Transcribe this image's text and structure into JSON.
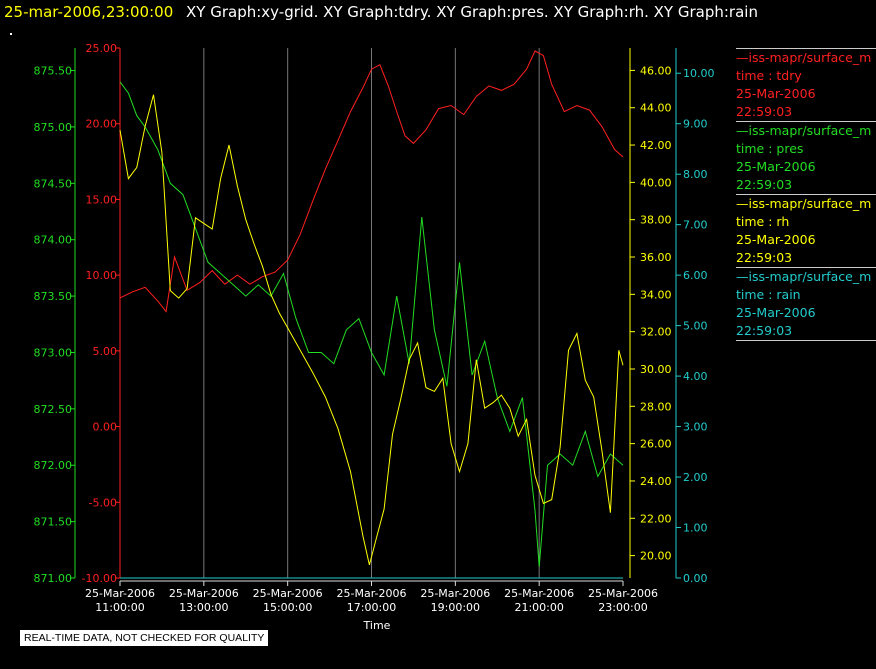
{
  "header": {
    "time": "25-mar-2006,23:00:00",
    "graphs": "XY Graph:xy-grid.  XY Graph:tdry.  XY Graph:pres.  XY Graph:rh.  XY Graph:rain"
  },
  "legend": [
    {
      "title": "—iss-mapr/surface_m",
      "var": "time : tdry",
      "date": "25-Mar-2006",
      "time": "22:59:03",
      "color": "#ff2020"
    },
    {
      "title": "—iss-mapr/surface_m",
      "var": "time : pres",
      "date": "25-Mar-2006",
      "time": "22:59:03",
      "color": "#22dd22"
    },
    {
      "title": "—iss-mapr/surface_m",
      "var": "time : rh",
      "date": "25-Mar-2006",
      "time": "22:59:03",
      "color": "#ffff00"
    },
    {
      "title": "—iss-mapr/surface_m",
      "var": "time : rain",
      "date": "25-Mar-2006",
      "time": "22:59:03",
      "color": "#22cccc"
    }
  ],
  "footer": "REAL-TIME DATA, NOT CHECKED FOR QUALITY",
  "chart_data": {
    "type": "line",
    "xlabel": "Time",
    "xlim": [
      "25-Mar-2006 11:00",
      "25-Mar-2006 23:00"
    ],
    "x_ticks": [
      [
        "25-Mar-2006",
        "11:00:00"
      ],
      [
        "25-Mar-2006",
        "13:00:00"
      ],
      [
        "25-Mar-2006",
        "15:00:00"
      ],
      [
        "25-Mar-2006",
        "17:00:00"
      ],
      [
        "25-Mar-2006",
        "19:00:00"
      ],
      [
        "25-Mar-2006",
        "21:00:00"
      ],
      [
        "25-Mar-2006",
        "23:00:00"
      ]
    ],
    "grid": "vertical",
    "axes": {
      "pres": {
        "color": "#22dd22",
        "ylim": [
          871.0,
          875.7
        ],
        "ticks": [
          "871.00",
          "871.50",
          "872.00",
          "872.50",
          "873.00",
          "873.50",
          "874.00",
          "874.50",
          "875.00",
          "875.50"
        ]
      },
      "tdry": {
        "color": "#ff2020",
        "ylim": [
          -10.0,
          25.0
        ],
        "ticks": [
          "-10.00",
          "-5.00",
          "0.00",
          "5.00",
          "10.00",
          "15.00",
          "20.00",
          "25.00"
        ]
      },
      "rh": {
        "color": "#ffff00",
        "ylim": [
          18.8,
          47.2
        ],
        "ticks": [
          "20.00",
          "22.00",
          "24.00",
          "26.00",
          "28.00",
          "30.00",
          "32.00",
          "34.00",
          "36.00",
          "38.00",
          "40.00",
          "42.00",
          "44.00",
          "46.00"
        ]
      },
      "rain": {
        "color": "#22cccc",
        "ylim": [
          0.0,
          10.5
        ],
        "ticks": [
          "0.00",
          "1.00",
          "2.00",
          "3.00",
          "4.00",
          "5.00",
          "6.00",
          "7.00",
          "8.00",
          "9.00",
          "10.00"
        ]
      }
    },
    "series": [
      {
        "key": "tdry",
        "color": "#ff2020",
        "x": [
          11.0,
          11.3,
          11.6,
          11.9,
          12.1,
          12.3,
          12.6,
          12.9,
          13.2,
          13.5,
          13.8,
          14.1,
          14.4,
          14.7,
          15.0,
          15.3,
          15.6,
          15.9,
          16.2,
          16.5,
          16.8,
          17.0,
          17.2,
          17.4,
          17.6,
          17.8,
          18.0,
          18.3,
          18.6,
          18.9,
          19.2,
          19.5,
          19.8,
          20.1,
          20.4,
          20.7,
          20.9,
          21.1,
          21.3,
          21.6,
          21.9,
          22.2,
          22.5,
          22.8,
          23.0
        ],
        "y": [
          8.5,
          8.9,
          9.2,
          8.3,
          7.6,
          11.2,
          9.0,
          9.5,
          10.3,
          9.4,
          10.0,
          9.4,
          9.9,
          10.2,
          11.0,
          12.7,
          14.9,
          17.0,
          18.9,
          20.8,
          22.4,
          23.6,
          23.9,
          22.5,
          20.8,
          19.2,
          18.7,
          19.6,
          21.0,
          21.2,
          20.6,
          21.8,
          22.5,
          22.2,
          22.6,
          23.6,
          24.8,
          24.5,
          22.6,
          20.8,
          21.2,
          20.9,
          19.8,
          18.3,
          17.8
        ]
      },
      {
        "key": "pres",
        "color": "#22dd22",
        "x": [
          11.0,
          11.2,
          11.4,
          11.6,
          11.9,
          12.2,
          12.5,
          12.8,
          13.1,
          13.4,
          13.7,
          14.0,
          14.3,
          14.6,
          14.9,
          15.2,
          15.5,
          15.8,
          16.1,
          16.4,
          16.7,
          17.0,
          17.3,
          17.6,
          17.9,
          18.2,
          18.5,
          18.8,
          19.1,
          19.4,
          19.7,
          20.0,
          20.3,
          20.6,
          20.9,
          21.0,
          21.2,
          21.5,
          21.8,
          22.1,
          22.4,
          22.7,
          23.0
        ],
        "y": [
          875.4,
          875.3,
          875.1,
          875.0,
          874.8,
          874.5,
          874.4,
          874.1,
          873.8,
          873.7,
          873.6,
          873.5,
          873.6,
          873.5,
          873.7,
          873.3,
          873.0,
          873.0,
          872.9,
          873.2,
          873.3,
          873.0,
          872.8,
          873.5,
          872.9,
          874.2,
          873.2,
          872.7,
          873.8,
          872.8,
          873.1,
          872.6,
          872.3,
          872.6,
          871.6,
          871.1,
          872.0,
          872.1,
          872.0,
          872.3,
          871.9,
          872.1,
          872.0
        ]
      },
      {
        "key": "rh",
        "color": "#ffff00",
        "x": [
          11.0,
          11.2,
          11.4,
          11.6,
          11.8,
          12.0,
          12.2,
          12.4,
          12.6,
          12.8,
          13.0,
          13.2,
          13.4,
          13.6,
          13.8,
          14.0,
          14.2,
          14.4,
          14.6,
          14.8,
          15.0,
          15.3,
          15.6,
          15.9,
          16.2,
          16.5,
          16.8,
          16.95,
          17.1,
          17.3,
          17.5,
          17.7,
          17.9,
          18.1,
          18.3,
          18.5,
          18.7,
          18.9,
          19.1,
          19.3,
          19.5,
          19.7,
          19.9,
          20.1,
          20.3,
          20.5,
          20.7,
          20.9,
          21.1,
          21.3,
          21.5,
          21.7,
          21.9,
          22.1,
          22.3,
          22.5,
          22.7,
          22.9,
          23.0
        ],
        "y": [
          42.8,
          40.2,
          40.8,
          43.0,
          44.7,
          41.6,
          34.2,
          33.8,
          34.3,
          38.1,
          37.8,
          37.5,
          40.2,
          42.0,
          39.8,
          38.0,
          36.7,
          35.5,
          34.0,
          33.0,
          32.2,
          31.0,
          29.8,
          28.5,
          26.8,
          24.5,
          21.0,
          19.5,
          20.8,
          22.5,
          26.5,
          28.4,
          30.5,
          31.4,
          29.0,
          28.8,
          29.5,
          26.0,
          24.5,
          26.0,
          30.5,
          27.9,
          28.2,
          28.6,
          27.9,
          26.4,
          27.3,
          24.3,
          22.8,
          23.0,
          25.8,
          31.0,
          31.9,
          29.4,
          28.5,
          25.6,
          22.3,
          31.0,
          30.2
        ]
      },
      {
        "key": "rain",
        "color": "#22cccc",
        "x": [
          11.0,
          23.0
        ],
        "y": [
          0.0,
          0.0
        ]
      }
    ]
  }
}
